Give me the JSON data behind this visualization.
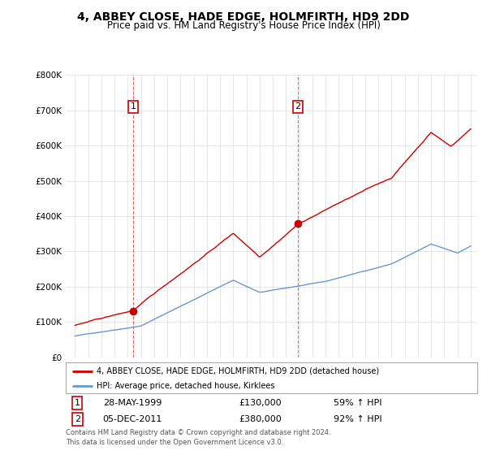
{
  "title": "4, ABBEY CLOSE, HADE EDGE, HOLMFIRTH, HD9 2DD",
  "subtitle": "Price paid vs. HM Land Registry's House Price Index (HPI)",
  "title_fontsize": 10,
  "subtitle_fontsize": 8.5,
  "ylim": [
    0,
    800000
  ],
  "yticks": [
    0,
    100000,
    200000,
    300000,
    400000,
    500000,
    600000,
    700000,
    800000
  ],
  "ytick_labels": [
    "£0",
    "£100K",
    "£200K",
    "£300K",
    "£400K",
    "£500K",
    "£600K",
    "£700K",
    "£800K"
  ],
  "x_start_year": 1995,
  "x_end_year": 2025,
  "red_line_color": "#cc0000",
  "blue_line_color": "#6699cc",
  "marker1_date": "28-MAY-1999",
  "marker1_price": 130000,
  "marker1_hpi": "59% ↑ HPI",
  "marker1_label": "1",
  "marker1_year": 1999.4,
  "marker2_date": "05-DEC-2011",
  "marker2_price": 380000,
  "marker2_hpi": "92% ↑ HPI",
  "marker2_label": "2",
  "marker2_year": 2011.9,
  "legend_line1": "4, ABBEY CLOSE, HADE EDGE, HOLMFIRTH, HD9 2DD (detached house)",
  "legend_line2": "HPI: Average price, detached house, Kirklees",
  "footer_line1": "Contains HM Land Registry data © Crown copyright and database right 2024.",
  "footer_line2": "This data is licensed under the Open Government Licence v3.0.",
  "background_color": "#ffffff",
  "grid_color": "#dddddd"
}
